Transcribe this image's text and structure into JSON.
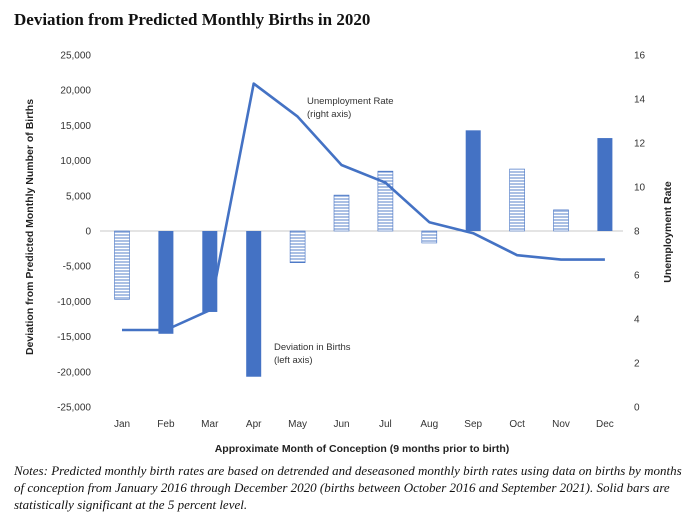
{
  "title": "Deviation from Predicted Monthly Births in 2020",
  "notes": "Notes: Predicted monthly birth rates are based on detrended and deseasoned monthly birth rates using data on births by months of conception from January 2016 through December 2020 (births between October 2016 and September 2021). Solid bars are statistically significant at the 5 percent level.",
  "chart_data": {
    "type": "bar",
    "xlabel": "Approximate Month of Conception (9 months prior to birth)",
    "ylabel": "Deviation from Predicted Monthly Number of Births",
    "y2label": "Unemployment Rate",
    "categories": [
      "Jan",
      "Feb",
      "Mar",
      "Apr",
      "May",
      "Jun",
      "Jul",
      "Aug",
      "Sep",
      "Oct",
      "Nov",
      "Dec"
    ],
    "ylim": [
      -25000,
      25000
    ],
    "yticks": [
      -25000,
      -20000,
      -15000,
      -10000,
      -5000,
      0,
      5000,
      10000,
      15000,
      20000,
      25000
    ],
    "ytick_labels": [
      "-25,000",
      "-20,000",
      "-15,000",
      "-10,000",
      "-5,000",
      "0",
      "5,000",
      "10,000",
      "15,000",
      "20,000",
      "25,000"
    ],
    "y2lim": [
      0,
      16
    ],
    "y2ticks": [
      0,
      2,
      4,
      6,
      8,
      10,
      12,
      14,
      16
    ],
    "series": [
      {
        "name": "Deviation in Births",
        "annotation": "Deviation in Births\n(left axis)",
        "type": "bar",
        "axis": "left",
        "color": "#4472c4",
        "values": [
          -9700,
          -14600,
          -11500,
          -20700,
          -4500,
          5100,
          8500,
          -1700,
          14300,
          8800,
          3000,
          13200
        ],
        "significant": [
          false,
          true,
          true,
          true,
          false,
          false,
          false,
          false,
          true,
          false,
          false,
          true
        ]
      },
      {
        "name": "Unemployment Rate",
        "annotation": "Unemployment Rate\n(right axis)",
        "type": "line",
        "axis": "right",
        "color": "#4472c4",
        "values": [
          3.5,
          3.5,
          4.4,
          14.7,
          13.2,
          11.0,
          10.2,
          8.4,
          7.9,
          6.9,
          6.7,
          6.7
        ]
      }
    ]
  }
}
